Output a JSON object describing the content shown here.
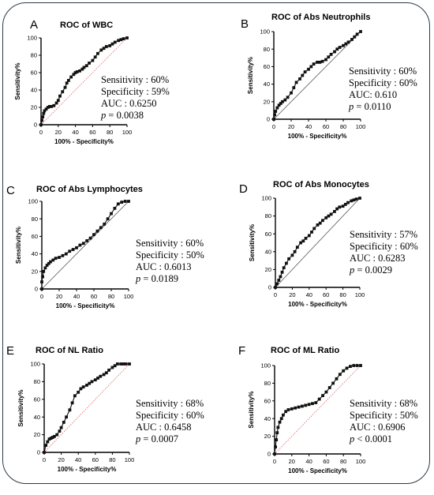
{
  "chart_data": [
    {
      "type": "line",
      "panel_letter": "A",
      "title": "ROC of WBC",
      "xlabel": "100% - Specificity%",
      "ylabel": "Sensitivity%",
      "xlim": [
        0,
        100
      ],
      "ylim": [
        0,
        100
      ],
      "xticks": [
        "0",
        "20",
        "40",
        "60",
        "80",
        "100"
      ],
      "yticks": [
        "0",
        "20",
        "40",
        "60",
        "80",
        "100"
      ],
      "reference_line": {
        "style": "dotted",
        "color": "#e06060"
      },
      "series": [
        {
          "color": "#111111",
          "x": [
            0,
            1,
            2,
            3,
            4,
            6,
            8,
            10,
            12,
            15,
            18,
            20,
            22,
            25,
            28,
            30,
            32,
            35,
            38,
            40,
            42,
            45,
            48,
            50,
            53,
            56,
            60,
            63,
            66,
            70,
            73,
            76,
            80,
            83,
            86,
            90,
            93,
            96,
            100
          ],
          "y": [
            0,
            5,
            9,
            13,
            16,
            18,
            20,
            21,
            21,
            22,
            25,
            28,
            33,
            38,
            43,
            48,
            51,
            55,
            58,
            60,
            61,
            62,
            64,
            66,
            68,
            71,
            74,
            78,
            82,
            86,
            88,
            90,
            91,
            93,
            95,
            97,
            98,
            99,
            100
          ]
        }
      ],
      "stats": [
        {
          "label": "Sensitivity",
          "sep": " : ",
          "value": "60%"
        },
        {
          "label": "Specificity",
          "sep": " : ",
          "value": "59%"
        },
        {
          "label": "AUC",
          "sep": " : ",
          "value": "0.6250"
        },
        {
          "label": "p",
          "sep": " = ",
          "value": "0.0038",
          "italic": true
        }
      ]
    },
    {
      "type": "line",
      "panel_letter": "B",
      "title": "ROC of Abs Neutrophils",
      "xlabel": "100% - Specificity%",
      "ylabel": "Sensitivity%",
      "xlim": [
        0,
        100
      ],
      "ylim": [
        0,
        100
      ],
      "xticks": [
        "0",
        "20",
        "40",
        "60",
        "80",
        "100"
      ],
      "yticks": [
        "0",
        "20",
        "40",
        "60",
        "80",
        "100"
      ],
      "reference_line": {
        "style": "solid",
        "color": "#555555"
      },
      "series": [
        {
          "color": "#111111",
          "x": [
            0,
            1,
            2,
            4,
            6,
            8,
            10,
            13,
            16,
            20,
            23,
            26,
            30,
            33,
            36,
            40,
            43,
            46,
            50,
            53,
            56,
            60,
            63,
            66,
            70,
            73,
            76,
            80,
            83,
            86,
            90,
            93,
            96,
            100
          ],
          "y": [
            0,
            5,
            9,
            13,
            16,
            18,
            20,
            22,
            25,
            30,
            36,
            42,
            46,
            50,
            54,
            57,
            60,
            63,
            65,
            65,
            66,
            68,
            71,
            74,
            77,
            80,
            82,
            84,
            86,
            88,
            91,
            94,
            97,
            100
          ]
        }
      ],
      "stats": [
        {
          "label": "Sensitivity",
          "sep": " : ",
          "value": "60%"
        },
        {
          "label": "Specificity",
          "sep": " : ",
          "value": "60%"
        },
        {
          "label": "AUC",
          "sep": ": ",
          "value": "0.610"
        },
        {
          "label": "p",
          "sep": " = ",
          "value": "0.0110",
          "italic": true
        }
      ]
    },
    {
      "type": "line",
      "panel_letter": "C",
      "title": "ROC of Abs Lymphocytes",
      "xlabel": "100% - Specificity%",
      "ylabel": "Sensitivity%",
      "xlim": [
        0,
        100
      ],
      "ylim": [
        0,
        100
      ],
      "xticks": [
        "0",
        "20",
        "40",
        "60",
        "80",
        "100"
      ],
      "yticks": [
        "0",
        "20",
        "40",
        "60",
        "80",
        "100"
      ],
      "reference_line": {
        "style": "solid",
        "color": "#555555"
      },
      "series": [
        {
          "color": "#111111",
          "x": [
            0,
            0,
            1,
            2,
            4,
            6,
            8,
            10,
            13,
            16,
            20,
            24,
            28,
            32,
            36,
            40,
            44,
            48,
            52,
            56,
            60,
            64,
            68,
            72,
            76,
            80,
            84,
            88,
            92,
            96,
            100
          ],
          "y": [
            0,
            8,
            14,
            20,
            24,
            27,
            29,
            31,
            33,
            35,
            36,
            38,
            40,
            43,
            45,
            47,
            50,
            52,
            55,
            58,
            62,
            66,
            70,
            74,
            80,
            86,
            92,
            97,
            99,
            100,
            100
          ]
        }
      ],
      "stats": [
        {
          "label": "Sensitivity",
          "sep": " : ",
          "value": "60%"
        },
        {
          "label": "Specificity",
          "sep": " : ",
          "value": "50%"
        },
        {
          "label": "AUC",
          "sep": " : ",
          "value": "0.6013"
        },
        {
          "label": "p",
          "sep": " = ",
          "value": "0.0189",
          "italic": true
        }
      ]
    },
    {
      "type": "line",
      "panel_letter": "D",
      "title": "ROC of Abs Monocytes",
      "xlabel": "100% - Specificity%",
      "ylabel": "Sensitivity%",
      "xlim": [
        0,
        100
      ],
      "ylim": [
        0,
        100
      ],
      "xticks": [
        "0",
        "20",
        "40",
        "60",
        "80",
        "100"
      ],
      "yticks": [
        "0",
        "20",
        "40",
        "60",
        "80",
        "100"
      ],
      "reference_line": {
        "style": "solid",
        "color": "#555555"
      },
      "series": [
        {
          "color": "#111111",
          "x": [
            0,
            2,
            4,
            6,
            8,
            10,
            13,
            16,
            20,
            23,
            26,
            30,
            33,
            36,
            40,
            43,
            46,
            50,
            53,
            56,
            60,
            63,
            66,
            70,
            73,
            76,
            80,
            83,
            86,
            90,
            93,
            96,
            100
          ],
          "y": [
            0,
            4,
            8,
            12,
            17,
            22,
            27,
            32,
            36,
            40,
            45,
            50,
            52,
            55,
            58,
            62,
            66,
            70,
            72,
            75,
            78,
            80,
            82,
            85,
            88,
            90,
            91,
            93,
            95,
            97,
            98,
            99,
            100
          ]
        }
      ],
      "stats": [
        {
          "label": "Sensitivity",
          "sep": " : ",
          "value": "57%"
        },
        {
          "label": "Specificity",
          "sep": " : ",
          "value": "60%"
        },
        {
          "label": "AUC",
          "sep": " : ",
          "value": "0.6283"
        },
        {
          "label": "p",
          "sep": " = ",
          "value": "0.0029",
          "italic": true
        }
      ]
    },
    {
      "type": "line",
      "panel_letter": "E",
      "title": "ROC of NL Ratio",
      "xlabel": "100% - Specificity%",
      "ylabel": "Sensitivity%",
      "xlim": [
        0,
        100
      ],
      "ylim": [
        0,
        100
      ],
      "xticks": [
        "0",
        "20",
        "40",
        "60",
        "80",
        "100"
      ],
      "yticks": [
        "0",
        "20",
        "40",
        "60",
        "80",
        "100"
      ],
      "reference_line": {
        "style": "dotted",
        "color": "#e06060"
      },
      "series": [
        {
          "color": "#111111",
          "x": [
            0,
            2,
            4,
            6,
            8,
            10,
            12,
            15,
            18,
            20,
            23,
            26,
            30,
            33,
            36,
            40,
            43,
            46,
            50,
            53,
            56,
            60,
            63,
            66,
            70,
            73,
            76,
            80,
            83,
            86,
            90,
            93,
            96,
            100
          ],
          "y": [
            0,
            8,
            12,
            15,
            16,
            17,
            18,
            20,
            24,
            28,
            34,
            40,
            48,
            56,
            64,
            68,
            72,
            74,
            76,
            78,
            80,
            82,
            84,
            86,
            88,
            90,
            93,
            96,
            98,
            100,
            100,
            100,
            100,
            100
          ]
        }
      ],
      "stats": [
        {
          "label": "Sensitivity",
          "sep": " : ",
          "value": "68%"
        },
        {
          "label": "Specificity",
          "sep": " : ",
          "value": "60%"
        },
        {
          "label": "AUC",
          "sep": " : ",
          "value": "0.6458"
        },
        {
          "label": "p",
          "sep": " = ",
          "value": "0.0007",
          "italic": true
        }
      ]
    },
    {
      "type": "line",
      "panel_letter": "F",
      "title": "ROC of ML Ratio",
      "xlabel": "100% - Specificity%",
      "ylabel": "Sensitivity%",
      "xlim": [
        0,
        100
      ],
      "ylim": [
        0,
        100
      ],
      "xticks": [
        "0",
        "20",
        "40",
        "60",
        "80",
        "100"
      ],
      "yticks": [
        "0",
        "20",
        "40",
        "60",
        "80",
        "100"
      ],
      "reference_line": {
        "style": "dotted",
        "color": "#e06060"
      },
      "series": [
        {
          "color": "#111111",
          "x": [
            0,
            1,
            2,
            3,
            4,
            6,
            8,
            10,
            13,
            16,
            20,
            24,
            28,
            32,
            36,
            40,
            44,
            48,
            52,
            56,
            60,
            64,
            68,
            72,
            76,
            80,
            84,
            88,
            92,
            96,
            100
          ],
          "y": [
            0,
            8,
            16,
            24,
            30,
            36,
            40,
            44,
            48,
            50,
            51,
            52,
            53,
            54,
            55,
            56,
            57,
            58,
            62,
            66,
            70,
            75,
            80,
            85,
            90,
            94,
            97,
            99,
            100,
            100,
            100
          ]
        }
      ],
      "stats": [
        {
          "label": "Sensitivity",
          "sep": " : ",
          "value": "68%"
        },
        {
          "label": "Specificity",
          "sep": " : ",
          "value": "50%"
        },
        {
          "label": "AUC",
          "sep": " : ",
          "value": "0.6906"
        },
        {
          "label": "p",
          "sep": " < ",
          "value": "0.0001",
          "italic": true
        }
      ]
    }
  ]
}
